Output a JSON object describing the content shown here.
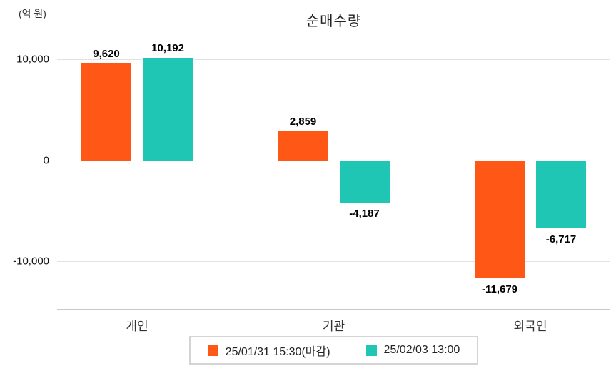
{
  "chart_data": {
    "type": "bar",
    "title": "순매수량",
    "ylabel": "(억 원)",
    "categories": [
      "개인",
      "기관",
      "외국인"
    ],
    "series": [
      {
        "name": "25/01/31 15:30(마감)",
        "color": "#ff5716",
        "values": [
          9620,
          2859,
          -11679
        ],
        "labels": [
          "9,620",
          "2,859",
          "-11,679"
        ]
      },
      {
        "name": "25/02/03 13:00",
        "color": "#1fc6b3",
        "values": [
          10192,
          -4187,
          -6717
        ],
        "labels": [
          "10,192",
          "-4,187",
          "-6,717"
        ]
      }
    ],
    "yticks": [
      10000,
      0,
      -10000
    ],
    "ytick_labels": [
      "10,000",
      "0",
      "-10,000"
    ],
    "ylim": [
      -14700,
      12000
    ],
    "grid": true,
    "legend_position": "bottom"
  },
  "colors": {
    "series1": "#ff5716",
    "series2": "#1fc6b3",
    "grid": "#e2e2e2",
    "zero_axis": "#a6a6a6",
    "baseline": "#c9c9c9",
    "text": "#222222"
  }
}
